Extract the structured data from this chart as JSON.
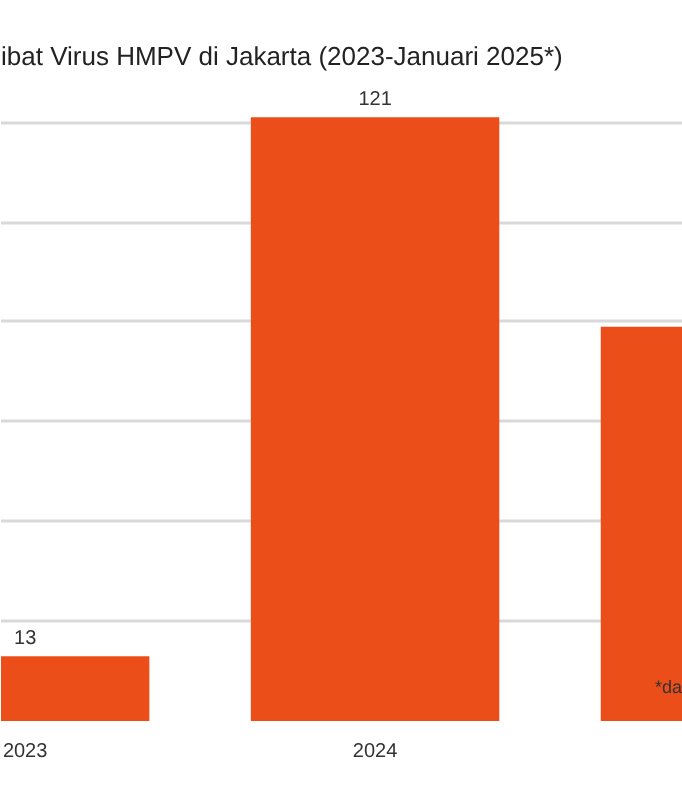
{
  "chart_data": {
    "type": "bar",
    "title": "ibat Virus HMPV di Jakarta (2023-Januari 2025*)",
    "categories": [
      "2023",
      "2024",
      null
    ],
    "values": [
      13,
      121,
      79
    ],
    "color": "#ec4e1a",
    "value_labels": [
      "13",
      "121",
      null
    ],
    "tick_labels": "x",
    "grid": "y",
    "annotations": [
      "*da"
    ]
  }
}
